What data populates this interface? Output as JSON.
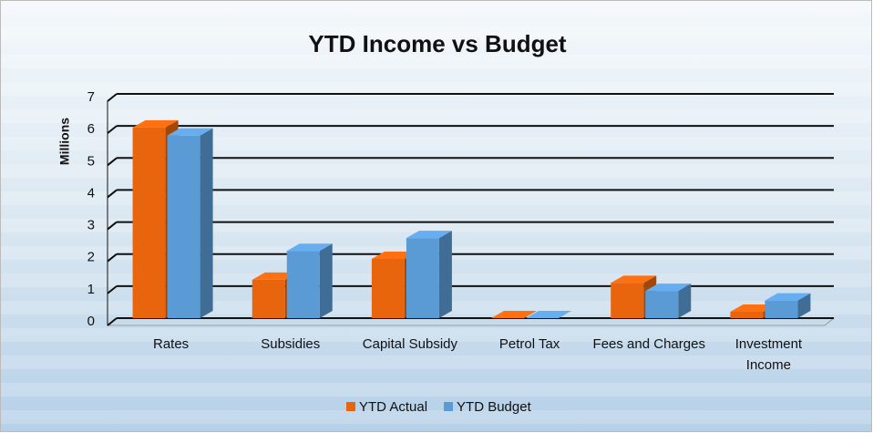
{
  "chart_data": {
    "type": "bar3d",
    "title": "YTD Income vs Budget",
    "ylabel": "Millions",
    "categories": [
      "Rates",
      "Subsidies",
      "Capital Subsidy",
      "Petrol Tax",
      "Fees and Charges",
      "Investment Income"
    ],
    "series": [
      {
        "name": "YTD Actual",
        "color": "#e8650e",
        "values": [
          5.95,
          1.2,
          1.85,
          0,
          1.1,
          0.2
        ]
      },
      {
        "name": "YTD Budget",
        "color": "#5b9bd5",
        "values": [
          5.7,
          2.1,
          2.5,
          0,
          0.85,
          0.55
        ]
      }
    ],
    "ylim": [
      0,
      7
    ],
    "yticks": [
      0,
      1,
      2,
      3,
      4,
      5,
      6,
      7
    ],
    "grid": true,
    "legend": "bottom"
  }
}
